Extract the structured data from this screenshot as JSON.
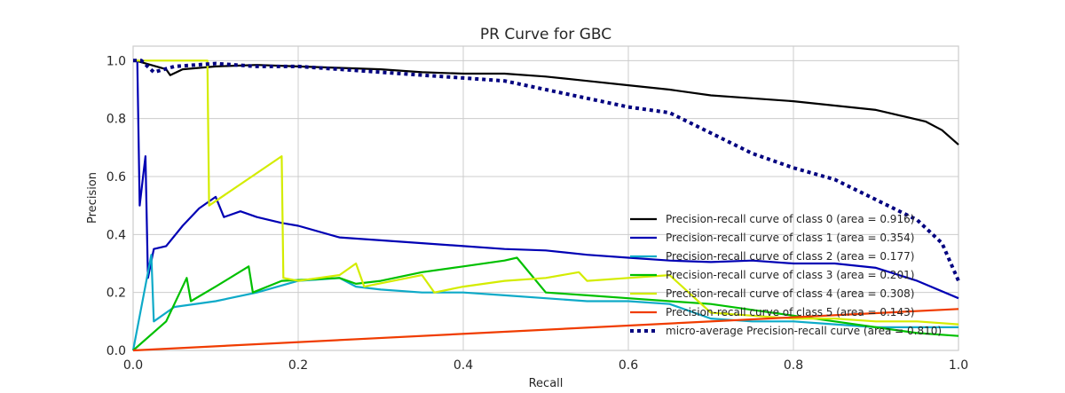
{
  "chart_data": {
    "type": "line",
    "title": "PR Curve for GBC",
    "xlabel": "Recall",
    "ylabel": "Precision",
    "xlim": [
      0.0,
      1.0
    ],
    "ylim": [
      0.0,
      1.05
    ],
    "xticks": [
      "0.0",
      "0.2",
      "0.4",
      "0.6",
      "0.8",
      "1.0"
    ],
    "yticks": [
      "0.0",
      "0.2",
      "0.4",
      "0.6",
      "0.8",
      "1.0"
    ],
    "grid": true,
    "legend_position": "lower-right",
    "series": [
      {
        "name": "Precision-recall curve of class 0 (area = 0.916)",
        "color": "#000000",
        "dash": "solid",
        "x": [
          0.0,
          0.003,
          0.04,
          0.045,
          0.06,
          0.1,
          0.15,
          0.2,
          0.25,
          0.3,
          0.35,
          0.4,
          0.45,
          0.5,
          0.55,
          0.6,
          0.65,
          0.7,
          0.75,
          0.8,
          0.85,
          0.9,
          0.93,
          0.96,
          0.98,
          1.0
        ],
        "y": [
          1.0,
          1.0,
          0.97,
          0.95,
          0.97,
          0.98,
          0.985,
          0.98,
          0.975,
          0.97,
          0.96,
          0.955,
          0.955,
          0.945,
          0.93,
          0.915,
          0.9,
          0.88,
          0.87,
          0.86,
          0.845,
          0.83,
          0.81,
          0.79,
          0.76,
          0.71
        ]
      },
      {
        "name": "Precision-recall curve of class 1 (area = 0.354)",
        "color": "#0000b4",
        "dash": "solid",
        "x": [
          0.0,
          0.005,
          0.008,
          0.012,
          0.015,
          0.018,
          0.025,
          0.04,
          0.06,
          0.08,
          0.1,
          0.11,
          0.13,
          0.15,
          0.18,
          0.2,
          0.25,
          0.3,
          0.35,
          0.4,
          0.45,
          0.5,
          0.55,
          0.6,
          0.65,
          0.7,
          0.75,
          0.8,
          0.85,
          0.9,
          0.95,
          1.0
        ],
        "y": [
          1.0,
          1.0,
          0.5,
          0.6,
          0.67,
          0.25,
          0.35,
          0.36,
          0.43,
          0.49,
          0.53,
          0.46,
          0.48,
          0.46,
          0.44,
          0.43,
          0.39,
          0.38,
          0.37,
          0.36,
          0.35,
          0.345,
          0.33,
          0.32,
          0.31,
          0.305,
          0.31,
          0.3,
          0.3,
          0.285,
          0.24,
          0.18
        ]
      },
      {
        "name": "Precision-recall curve of class 2 (area = 0.177)",
        "color": "#0eaac8",
        "dash": "solid",
        "x": [
          0.0,
          0.022,
          0.025,
          0.05,
          0.1,
          0.15,
          0.2,
          0.25,
          0.27,
          0.3,
          0.35,
          0.4,
          0.45,
          0.5,
          0.55,
          0.6,
          0.65,
          0.7,
          0.75,
          0.8,
          0.85,
          0.9,
          0.95,
          1.0
        ],
        "y": [
          0.0,
          0.33,
          0.1,
          0.15,
          0.17,
          0.2,
          0.24,
          0.25,
          0.22,
          0.21,
          0.2,
          0.2,
          0.19,
          0.18,
          0.17,
          0.17,
          0.16,
          0.11,
          0.1,
          0.1,
          0.09,
          0.08,
          0.08,
          0.08
        ]
      },
      {
        "name": "Precision-recall curve of class 3 (area = 0.201)",
        "color": "#00c000",
        "dash": "solid",
        "x": [
          0.0,
          0.04,
          0.065,
          0.07,
          0.1,
          0.14,
          0.145,
          0.18,
          0.25,
          0.27,
          0.3,
          0.35,
          0.4,
          0.45,
          0.465,
          0.5,
          0.55,
          0.6,
          0.65,
          0.7,
          0.75,
          0.8,
          0.85,
          0.9,
          0.95,
          1.0
        ],
        "y": [
          0.0,
          0.1,
          0.25,
          0.17,
          0.22,
          0.29,
          0.2,
          0.24,
          0.25,
          0.23,
          0.24,
          0.27,
          0.29,
          0.31,
          0.32,
          0.2,
          0.19,
          0.18,
          0.17,
          0.16,
          0.14,
          0.12,
          0.1,
          0.08,
          0.06,
          0.05
        ]
      },
      {
        "name": "Precision-recall curve of class 4 (area = 0.308)",
        "color": "#d4ec00",
        "dash": "solid",
        "x": [
          0.0,
          0.003,
          0.09,
          0.092,
          0.18,
          0.182,
          0.2,
          0.25,
          0.27,
          0.28,
          0.35,
          0.365,
          0.4,
          0.45,
          0.5,
          0.54,
          0.55,
          0.6,
          0.65,
          0.7,
          0.75,
          0.8,
          0.85,
          0.9,
          0.95,
          1.0
        ],
        "y": [
          1.0,
          1.0,
          1.0,
          0.5,
          0.67,
          0.25,
          0.24,
          0.26,
          0.3,
          0.22,
          0.26,
          0.2,
          0.22,
          0.24,
          0.25,
          0.27,
          0.24,
          0.25,
          0.26,
          0.13,
          0.12,
          0.11,
          0.11,
          0.1,
          0.1,
          0.09
        ]
      },
      {
        "name": "Precision-recall curve of class 5 (area = 0.143)",
        "color": "#f03c00",
        "dash": "solid",
        "x": [
          0.0,
          1.0
        ],
        "y": [
          0.0,
          0.143
        ]
      },
      {
        "name": "micro-average Precision-recall curve (area = 0.810)",
        "color": "#000080",
        "dash": "dotted",
        "x": [
          0.0,
          0.01,
          0.025,
          0.05,
          0.1,
          0.15,
          0.2,
          0.25,
          0.3,
          0.35,
          0.4,
          0.45,
          0.5,
          0.55,
          0.6,
          0.65,
          0.7,
          0.75,
          0.8,
          0.85,
          0.9,
          0.95,
          0.98,
          1.0
        ],
        "y": [
          1.0,
          1.0,
          0.96,
          0.98,
          0.99,
          0.98,
          0.98,
          0.97,
          0.96,
          0.95,
          0.94,
          0.93,
          0.9,
          0.87,
          0.84,
          0.82,
          0.75,
          0.68,
          0.63,
          0.59,
          0.52,
          0.45,
          0.37,
          0.24
        ]
      }
    ]
  }
}
